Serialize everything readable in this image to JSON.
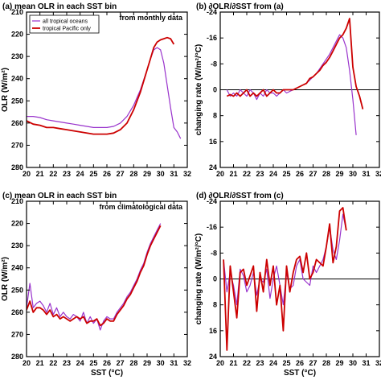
{
  "chart_data": [
    {
      "type": "line",
      "title": "(a) mean OLR in each SST bin",
      "annotation": "from monthly data",
      "xlabel": "",
      "ylabel": "OLR (W/m²)",
      "xlim": [
        20,
        32
      ],
      "ylim": [
        210,
        280
      ],
      "y_inverted": true,
      "xticks": [
        "20",
        "21",
        "22",
        "23",
        "24",
        "25",
        "26",
        "27",
        "28",
        "29",
        "30",
        "31",
        "32"
      ],
      "yticks": [
        "210",
        "220",
        "230",
        "240",
        "250",
        "260",
        "270",
        "280"
      ],
      "legend": "top-left",
      "zero_line": false,
      "series": [
        {
          "name": "all tropical oceans",
          "color": "#9933cc",
          "x": [
            20,
            20.5,
            21,
            21.5,
            22,
            22.5,
            23,
            23.5,
            24,
            24.5,
            25,
            25.5,
            26,
            26.5,
            27,
            27.5,
            28,
            28.5,
            29,
            29.25,
            29.5,
            29.75,
            30,
            30.25,
            30.5,
            30.75,
            31,
            31.25,
            31.5
          ],
          "y": [
            257,
            257,
            257.5,
            258.5,
            259,
            259.5,
            260,
            260.5,
            261,
            261.5,
            262,
            262,
            262,
            261.5,
            260,
            257,
            252,
            245,
            236,
            231,
            227,
            226,
            227,
            233,
            243,
            253,
            262,
            264,
            267
          ]
        },
        {
          "name": "tropical Pacific only",
          "color": "#cc0000",
          "x": [
            20,
            20.5,
            21,
            21.5,
            22,
            22.5,
            23,
            23.5,
            24,
            24.5,
            25,
            25.5,
            26,
            26.5,
            27,
            27.5,
            28,
            28.5,
            29,
            29.25,
            29.5,
            29.75,
            30,
            30.25,
            30.5,
            30.75,
            31
          ],
          "y": [
            259,
            260.5,
            261,
            262,
            262,
            262.5,
            263,
            263.5,
            264,
            264.5,
            265,
            265,
            265,
            264.5,
            263,
            260,
            254,
            246,
            236,
            231,
            226,
            223.5,
            222.5,
            222,
            221.5,
            222,
            224.5
          ]
        }
      ]
    },
    {
      "type": "line",
      "title": "(b) ∂OLR/∂SST from (a)",
      "xlabel": "",
      "ylabel": "changing rate (W/m²/°C)",
      "xlim": [
        20,
        32
      ],
      "ylim": [
        -24,
        24
      ],
      "y_inverted": true,
      "xticks": [
        "20",
        "21",
        "22",
        "23",
        "24",
        "25",
        "26",
        "27",
        "28",
        "29",
        "30",
        "31",
        "32"
      ],
      "yticks": [
        "-24",
        "-16",
        "-8",
        "0",
        "8",
        "16",
        "24"
      ],
      "zero_line": true,
      "series": [
        {
          "name": "",
          "color": "#9933cc",
          "x": [
            20.5,
            20.75,
            21,
            21.25,
            21.5,
            21.75,
            22,
            22.25,
            22.5,
            22.75,
            23,
            23.25,
            23.5,
            23.75,
            24,
            24.25,
            24.5,
            24.75,
            25,
            25.25,
            25.5,
            25.75,
            26,
            26.25,
            26.5,
            26.75,
            27,
            27.25,
            27.5,
            27.75,
            28,
            28.25,
            28.5,
            28.75,
            29,
            29.25,
            29.5,
            29.75,
            30,
            30.25
          ],
          "y": [
            0,
            2,
            1,
            2,
            0,
            1,
            2,
            0,
            1,
            3,
            1,
            2,
            0,
            1,
            1,
            2,
            1,
            0,
            1,
            0.5,
            0,
            -0.5,
            -1,
            -1.5,
            -2,
            -3,
            -4,
            -5,
            -6.5,
            -8,
            -9.5,
            -11,
            -13,
            -15,
            -17,
            -16,
            -13,
            -6,
            3,
            14
          ]
        },
        {
          "name": "",
          "color": "#cc0000",
          "x": [
            20.5,
            20.75,
            21,
            21.25,
            21.5,
            21.75,
            22,
            22.25,
            22.5,
            22.75,
            23,
            23.25,
            23.5,
            23.75,
            24,
            24.25,
            24.5,
            24.75,
            25,
            25.25,
            25.5,
            25.75,
            26,
            26.25,
            26.5,
            26.75,
            27,
            27.25,
            27.5,
            27.75,
            28,
            28.25,
            28.5,
            28.75,
            29,
            29.25,
            29.5,
            29.75,
            30,
            30.25,
            30.5,
            30.75
          ],
          "y": [
            2,
            1.5,
            2,
            1,
            2,
            1,
            0,
            2,
            1,
            2,
            1,
            0,
            2,
            1,
            0,
            1,
            1,
            0,
            0,
            0,
            0,
            -0.5,
            -1,
            -1.5,
            -2,
            -3.5,
            -4,
            -5,
            -6,
            -7.5,
            -8.5,
            -10,
            -12,
            -14,
            -16,
            -17,
            -19,
            -22,
            -7,
            -1,
            2,
            6
          ]
        }
      ]
    },
    {
      "type": "line",
      "title": "(c) mean OLR in each SST bin",
      "annotation": "from climatological data",
      "xlabel": "SST (°C)",
      "ylabel": "OLR (W/m²)",
      "xlim": [
        20,
        32
      ],
      "ylim": [
        210,
        280
      ],
      "y_inverted": true,
      "xticks": [
        "20",
        "21",
        "22",
        "23",
        "24",
        "25",
        "26",
        "27",
        "28",
        "29",
        "30",
        "31",
        "32"
      ],
      "yticks": [
        "210",
        "220",
        "230",
        "240",
        "250",
        "260",
        "270",
        "280"
      ],
      "zero_line": false,
      "series": [
        {
          "name": "",
          "color": "#9933cc",
          "x": [
            20,
            20.25,
            20.5,
            20.75,
            21,
            21.25,
            21.5,
            21.75,
            22,
            22.25,
            22.5,
            22.75,
            23,
            23.25,
            23.5,
            23.75,
            24,
            24.25,
            24.5,
            24.75,
            25,
            25.25,
            25.5,
            25.75,
            26,
            26.25,
            26.5,
            26.75,
            27,
            27.25,
            27.5,
            27.75,
            28,
            28.25,
            28.5,
            28.75,
            29,
            29.25,
            29.5,
            29.75,
            30
          ],
          "y": [
            258,
            247,
            258,
            256,
            255,
            257,
            260,
            256,
            261,
            258,
            262,
            260,
            262,
            263,
            261,
            262,
            264,
            260,
            265,
            262,
            265,
            263,
            268,
            264,
            262,
            263,
            263,
            260,
            258,
            256,
            253,
            251,
            248,
            245,
            241,
            238,
            233,
            229,
            226,
            223,
            220
          ]
        },
        {
          "name": "",
          "color": "#cc0000",
          "x": [
            20,
            20.25,
            20.5,
            20.75,
            21,
            21.25,
            21.5,
            21.75,
            22,
            22.25,
            22.5,
            22.75,
            23,
            23.25,
            23.5,
            23.75,
            24,
            24.25,
            24.5,
            24.75,
            25,
            25.25,
            25.5,
            25.75,
            26,
            26.25,
            26.5,
            26.75,
            27,
            27.25,
            27.5,
            27.75,
            28,
            28.25,
            28.5,
            28.75,
            29,
            29.25,
            29.5,
            29.75,
            30
          ],
          "y": [
            259,
            255,
            260,
            258,
            258,
            259,
            261,
            259,
            262,
            261,
            263,
            262,
            263,
            264,
            263,
            262,
            263,
            262,
            265,
            264,
            264,
            263,
            266,
            265,
            263,
            264,
            264,
            261,
            259,
            257,
            254,
            252,
            249,
            246,
            242,
            239,
            234,
            230,
            227,
            224,
            221
          ]
        }
      ]
    },
    {
      "type": "line",
      "title": "(d) ∂OLR/∂SST from (c)",
      "xlabel": "SST (°C)",
      "ylabel": "changing rate (W/m²/°C)",
      "xlim": [
        20,
        32
      ],
      "ylim": [
        -24,
        24
      ],
      "y_inverted": true,
      "xticks": [
        "20",
        "21",
        "22",
        "23",
        "24",
        "25",
        "26",
        "27",
        "28",
        "29",
        "30",
        "31",
        "32"
      ],
      "yticks": [
        "-24",
        "-16",
        "-8",
        "0",
        "8",
        "16",
        "24"
      ],
      "zero_line": true,
      "series": [
        {
          "name": "",
          "color": "#9933cc",
          "x": [
            20.25,
            20.5,
            20.75,
            21,
            21.25,
            21.5,
            21.75,
            22,
            22.25,
            22.5,
            22.75,
            23,
            23.25,
            23.5,
            23.75,
            24,
            24.25,
            24.5,
            24.75,
            25,
            25.25,
            25.5,
            25.75,
            26,
            26.25,
            26.5,
            26.75,
            27,
            27.25,
            27.5,
            27.75,
            28,
            28.25,
            28.5,
            28.75,
            29,
            29.25,
            29.5
          ],
          "y": [
            -6,
            4,
            -2,
            2,
            8,
            -3,
            -1,
            4,
            2,
            -2,
            5,
            0,
            1,
            -3,
            6,
            0,
            -4,
            2,
            8,
            -2,
            3,
            2,
            -4,
            -6,
            0,
            1,
            2,
            -4,
            -2,
            -4,
            -6,
            -10,
            -16,
            -9,
            -6,
            -12,
            -20,
            -15
          ]
        },
        {
          "name": "",
          "color": "#cc0000",
          "x": [
            20.25,
            20.5,
            20.75,
            21,
            21.25,
            21.5,
            21.75,
            22,
            22.25,
            22.5,
            22.75,
            23,
            23.25,
            23.5,
            23.75,
            24,
            24.25,
            24.5,
            24.75,
            25,
            25.25,
            25.5,
            25.75,
            26,
            26.25,
            26.5,
            26.75,
            27,
            27.25,
            27.5,
            27.75,
            28,
            28.25,
            28.5,
            28.75,
            29,
            29.25,
            29.5
          ],
          "y": [
            -6,
            22,
            -4,
            4,
            12,
            -2,
            -3,
            2,
            -1,
            -4,
            10,
            -2,
            4,
            -6,
            2,
            -4,
            8,
            2,
            16,
            -4,
            4,
            -2,
            -6,
            -7,
            -2,
            -8,
            0,
            -2,
            -6,
            -5,
            -4,
            -10,
            -17,
            -5,
            -10,
            -21,
            -22,
            -15
          ]
        }
      ]
    }
  ]
}
